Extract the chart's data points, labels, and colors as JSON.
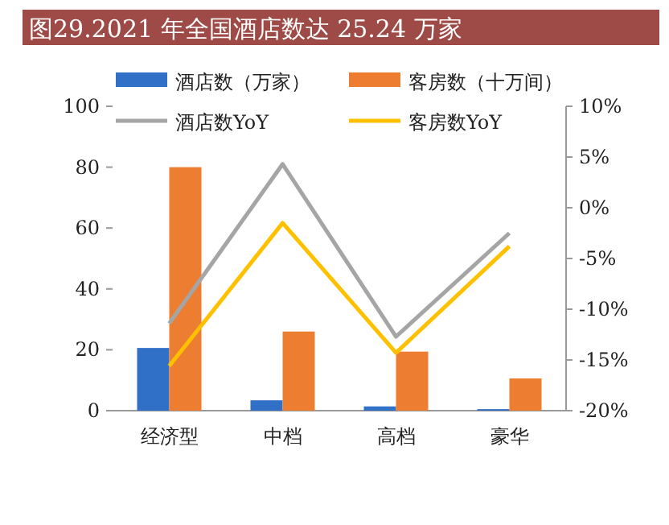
{
  "chart_data": {
    "type": "bar",
    "title": "图29.2021 年全国酒店数达 25.24 万家",
    "categories": [
      "经济型",
      "中档",
      "高档",
      "豪华"
    ],
    "series": [
      {
        "name": "酒店数（万家）",
        "color": "#3070c6",
        "values": [
          20.6,
          3.4,
          1.4,
          0.5
        ]
      },
      {
        "name": "客房数（十万间）",
        "color": "#ed7d31",
        "values": [
          80,
          26,
          19.4,
          10.6
        ]
      },
      {
        "name": "酒店数YoY",
        "type": "line",
        "axis": "y2",
        "color": "#a5a5a5",
        "values": [
          -11.4,
          4.3,
          -12.7,
          -2.5
        ]
      },
      {
        "name": "客房数YoY",
        "type": "line",
        "axis": "y2",
        "color": "#ffc000",
        "values": [
          -15.6,
          -1.5,
          -14.3,
          -3.8
        ]
      }
    ],
    "ylim": [
      0,
      100
    ],
    "yticks": [
      0,
      20,
      40,
      60,
      80,
      100
    ],
    "y2lim": [
      -20,
      10
    ],
    "y2ticks": [
      {
        "value": -20,
        "label": "-20%"
      },
      {
        "value": -15,
        "label": "-15%"
      },
      {
        "value": -10,
        "label": "-10%"
      },
      {
        "value": -5,
        "label": "-5%"
      },
      {
        "value": 0,
        "label": "0%"
      },
      {
        "value": 5,
        "label": "5%"
      },
      {
        "value": 10,
        "label": "10%"
      }
    ],
    "legend": "top"
  }
}
